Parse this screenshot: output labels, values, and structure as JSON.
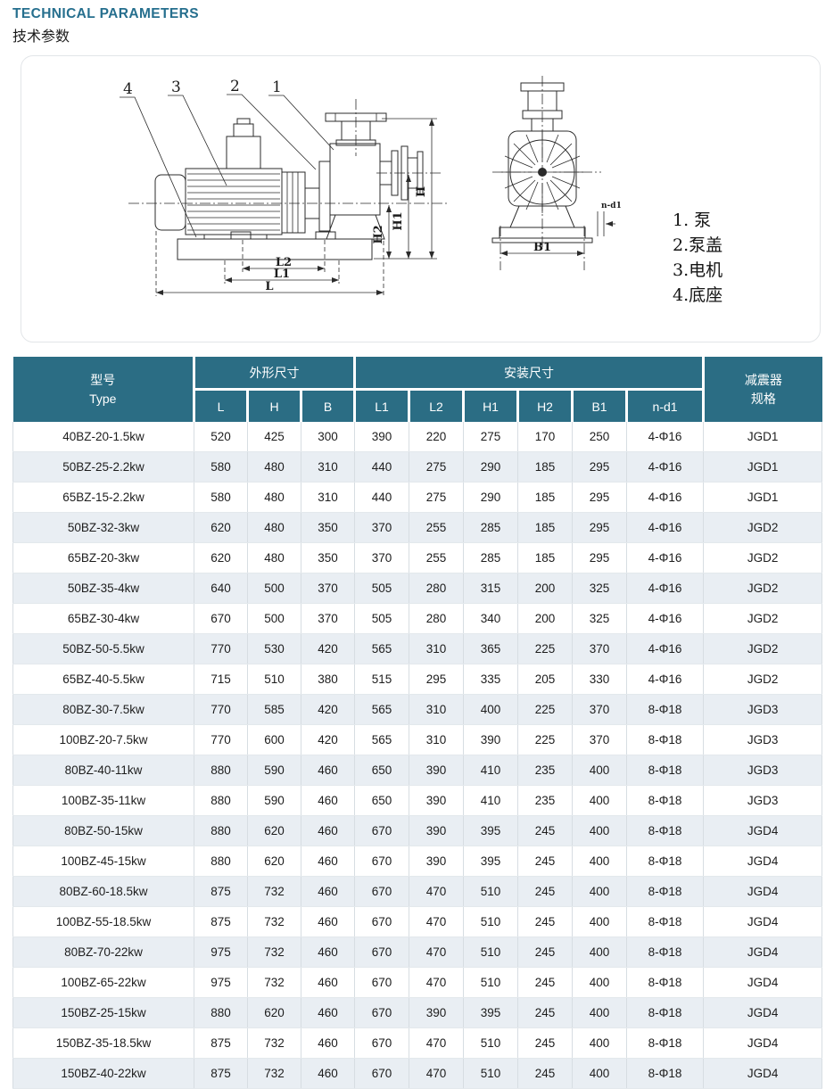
{
  "page": {
    "title_en": "TECHNICAL PARAMETERS",
    "title_zh": "技术参数"
  },
  "diagram": {
    "callouts": {
      "c4": "4",
      "c3": "3",
      "c2": "2",
      "c1": "1"
    },
    "dims": {
      "h": "H",
      "h1": "H1",
      "h2": "H2",
      "l2": "L2",
      "l1": "L1",
      "l": "L",
      "b1": "B1",
      "nd1": "n-d1"
    },
    "legend": [
      "1. 泵",
      "2.泵盖",
      "3.电机",
      "4.底座"
    ]
  },
  "table": {
    "header": {
      "type_zh": "型号",
      "type_en": "Type",
      "outline_group": "外形尺寸",
      "outline_cols": [
        "L",
        "H",
        "B"
      ],
      "install_group": "安装尺寸",
      "install_cols": [
        "L1",
        "L2",
        "H1",
        "H2",
        "B1",
        "n-d1"
      ],
      "damper_line1": "减震器",
      "damper_line2": "规格"
    },
    "rows": [
      [
        "40BZ-20-1.5kw",
        "520",
        "425",
        "300",
        "390",
        "220",
        "275",
        "170",
        "250",
        "4-Φ16",
        "JGD1"
      ],
      [
        "50BZ-25-2.2kw",
        "580",
        "480",
        "310",
        "440",
        "275",
        "290",
        "185",
        "295",
        "4-Φ16",
        "JGD1"
      ],
      [
        "65BZ-15-2.2kw",
        "580",
        "480",
        "310",
        "440",
        "275",
        "290",
        "185",
        "295",
        "4-Φ16",
        "JGD1"
      ],
      [
        "50BZ-32-3kw",
        "620",
        "480",
        "350",
        "370",
        "255",
        "285",
        "185",
        "295",
        "4-Φ16",
        "JGD2"
      ],
      [
        "65BZ-20-3kw",
        "620",
        "480",
        "350",
        "370",
        "255",
        "285",
        "185",
        "295",
        "4-Φ16",
        "JGD2"
      ],
      [
        "50BZ-35-4kw",
        "640",
        "500",
        "370",
        "505",
        "280",
        "315",
        "200",
        "325",
        "4-Φ16",
        "JGD2"
      ],
      [
        "65BZ-30-4kw",
        "670",
        "500",
        "370",
        "505",
        "280",
        "340",
        "200",
        "325",
        "4-Φ16",
        "JGD2"
      ],
      [
        "50BZ-50-5.5kw",
        "770",
        "530",
        "420",
        "565",
        "310",
        "365",
        "225",
        "370",
        "4-Φ16",
        "JGD2"
      ],
      [
        "65BZ-40-5.5kw",
        "715",
        "510",
        "380",
        "515",
        "295",
        "335",
        "205",
        "330",
        "4-Φ16",
        "JGD2"
      ],
      [
        "80BZ-30-7.5kw",
        "770",
        "585",
        "420",
        "565",
        "310",
        "400",
        "225",
        "370",
        "8-Φ18",
        "JGD3"
      ],
      [
        "100BZ-20-7.5kw",
        "770",
        "600",
        "420",
        "565",
        "310",
        "390",
        "225",
        "370",
        "8-Φ18",
        "JGD3"
      ],
      [
        "80BZ-40-11kw",
        "880",
        "590",
        "460",
        "650",
        "390",
        "410",
        "235",
        "400",
        "8-Φ18",
        "JGD3"
      ],
      [
        "100BZ-35-11kw",
        "880",
        "590",
        "460",
        "650",
        "390",
        "410",
        "235",
        "400",
        "8-Φ18",
        "JGD3"
      ],
      [
        "80BZ-50-15kw",
        "880",
        "620",
        "460",
        "670",
        "390",
        "395",
        "245",
        "400",
        "8-Φ18",
        "JGD4"
      ],
      [
        "100BZ-45-15kw",
        "880",
        "620",
        "460",
        "670",
        "390",
        "395",
        "245",
        "400",
        "8-Φ18",
        "JGD4"
      ],
      [
        "80BZ-60-18.5kw",
        "875",
        "732",
        "460",
        "670",
        "470",
        "510",
        "245",
        "400",
        "8-Φ18",
        "JGD4"
      ],
      [
        "100BZ-55-18.5kw",
        "875",
        "732",
        "460",
        "670",
        "470",
        "510",
        "245",
        "400",
        "8-Φ18",
        "JGD4"
      ],
      [
        "80BZ-70-22kw",
        "975",
        "732",
        "460",
        "670",
        "470",
        "510",
        "245",
        "400",
        "8-Φ18",
        "JGD4"
      ],
      [
        "100BZ-65-22kw",
        "975",
        "732",
        "460",
        "670",
        "470",
        "510",
        "245",
        "400",
        "8-Φ18",
        "JGD4"
      ],
      [
        "150BZ-25-15kw",
        "880",
        "620",
        "460",
        "670",
        "390",
        "395",
        "245",
        "400",
        "8-Φ18",
        "JGD4"
      ],
      [
        "150BZ-35-18.5kw",
        "875",
        "732",
        "460",
        "670",
        "470",
        "510",
        "245",
        "400",
        "8-Φ18",
        "JGD4"
      ],
      [
        "150BZ-40-22kw",
        "875",
        "732",
        "460",
        "670",
        "470",
        "510",
        "245",
        "400",
        "8-Φ18",
        "JGD4"
      ]
    ]
  }
}
